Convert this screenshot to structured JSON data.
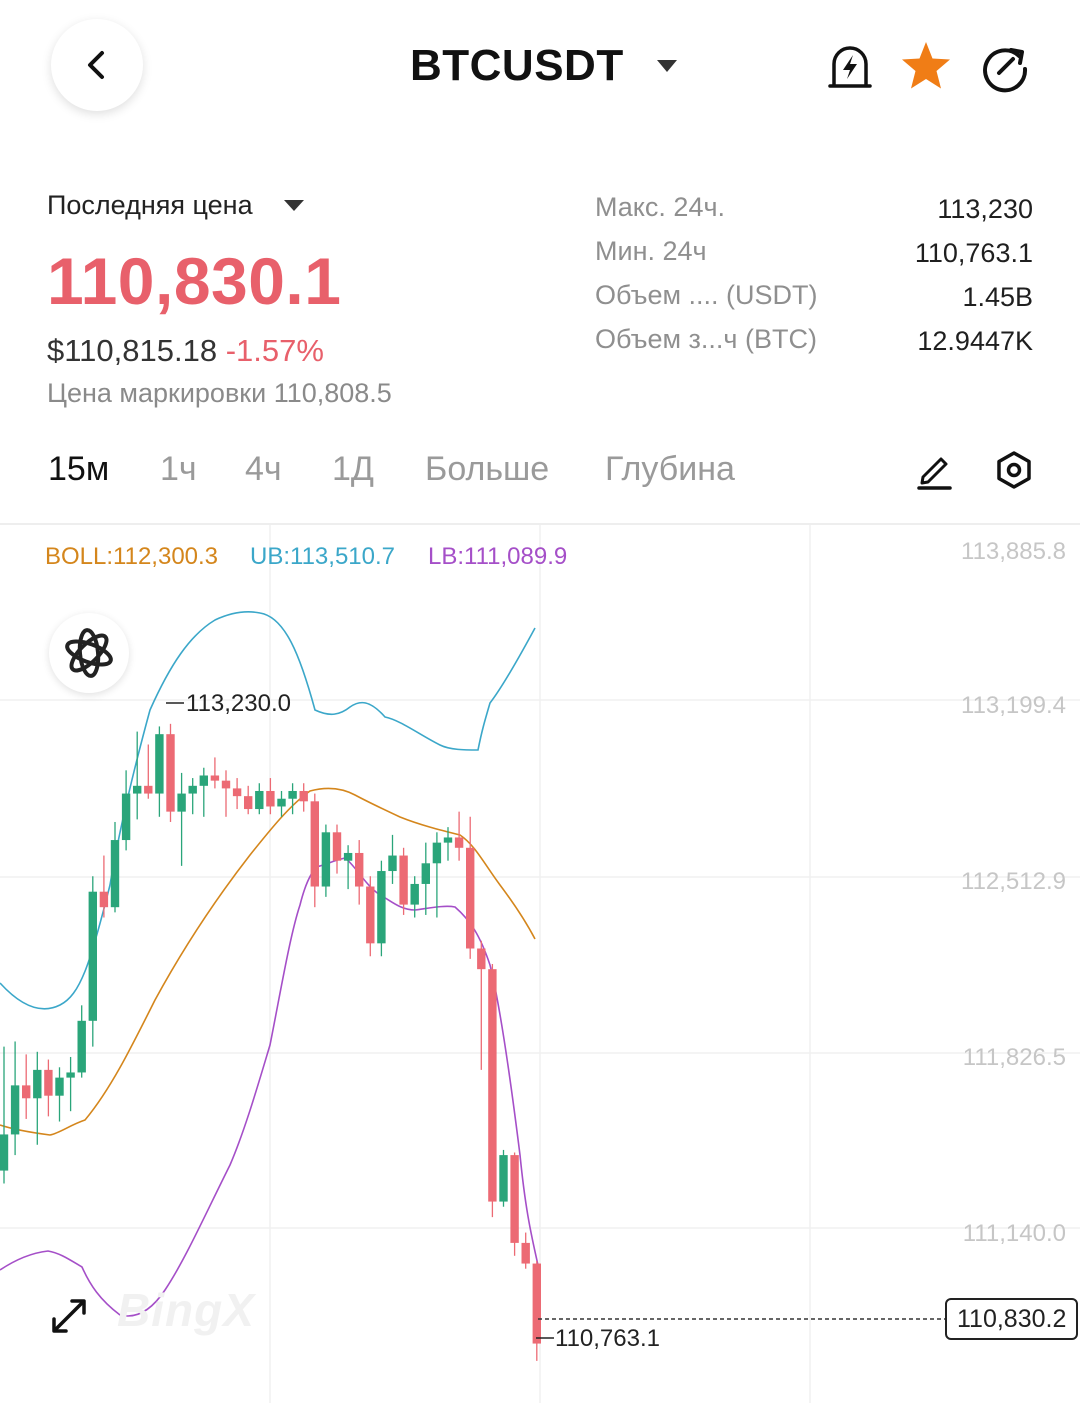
{
  "header": {
    "pair": "BTCUSDT",
    "icons": [
      "back-chevron-icon",
      "caret-down-icon",
      "alert-bell-icon",
      "star-icon",
      "share-icon"
    ],
    "star_color": "#f07d16"
  },
  "price": {
    "last_label": "Последняя цена",
    "last_price": "110,830.1",
    "usd_price": "$110,815.18",
    "change": "-1.57%",
    "mark_label": "Цена маркировки",
    "mark_price": "110,808.5",
    "down_color": "#e8606b"
  },
  "stats": [
    {
      "label": "Макс. 24ч.",
      "value": "113,230"
    },
    {
      "label": "Мин. 24ч",
      "value": "110,763.1"
    },
    {
      "label": "Объем .... (USDT)",
      "value": "1.45B"
    },
    {
      "label": "Объем з...ч (BTC)",
      "value": "12.9447K"
    }
  ],
  "tabs": [
    {
      "label": "15м",
      "active": true
    },
    {
      "label": "1ч",
      "active": false
    },
    {
      "label": "4ч",
      "active": false
    },
    {
      "label": "1Д",
      "active": false
    },
    {
      "label": "Больше",
      "active": false
    },
    {
      "label": "Глубина",
      "active": false
    }
  ],
  "indicator": {
    "boll": "BOLL:112,300.3",
    "ub": "UB:113,510.7",
    "lb": "LB:111,089.9"
  },
  "watermark": "BingX",
  "chart_data": {
    "type": "candlestick",
    "y_axis_labels": [
      "113,885.8",
      "113,199.4",
      "112,512.9",
      "111,826.5",
      "111,140.0"
    ],
    "ylim": [
      110600,
      114000
    ],
    "high_marker": "113,230.0",
    "low_marker": "110,763.1",
    "current_price_tag": "110,830.2",
    "current_price": 110830.2,
    "up_color": "#2aa57a",
    "down_color": "#ec6a74",
    "candles": [
      {
        "o": 111500,
        "h": 111980,
        "l": 111450,
        "c": 111640
      },
      {
        "o": 111640,
        "h": 112000,
        "l": 111560,
        "c": 111830
      },
      {
        "o": 111830,
        "h": 111950,
        "l": 111700,
        "c": 111780
      },
      {
        "o": 111780,
        "h": 111960,
        "l": 111600,
        "c": 111890
      },
      {
        "o": 111890,
        "h": 111930,
        "l": 111710,
        "c": 111790
      },
      {
        "o": 111790,
        "h": 111900,
        "l": 111690,
        "c": 111860
      },
      {
        "o": 111860,
        "h": 111940,
        "l": 111730,
        "c": 111880
      },
      {
        "o": 111880,
        "h": 112140,
        "l": 111860,
        "c": 112080
      },
      {
        "o": 112080,
        "h": 112640,
        "l": 111980,
        "c": 112580
      },
      {
        "o": 112580,
        "h": 112720,
        "l": 112480,
        "c": 112520
      },
      {
        "o": 112520,
        "h": 112850,
        "l": 112500,
        "c": 112780
      },
      {
        "o": 112780,
        "h": 113050,
        "l": 112740,
        "c": 112960
      },
      {
        "o": 112960,
        "h": 113200,
        "l": 112860,
        "c": 112990
      },
      {
        "o": 112990,
        "h": 113150,
        "l": 112940,
        "c": 112960
      },
      {
        "o": 112960,
        "h": 113220,
        "l": 112870,
        "c": 113190
      },
      {
        "o": 113190,
        "h": 113230,
        "l": 112850,
        "c": 112890
      },
      {
        "o": 112890,
        "h": 113040,
        "l": 112680,
        "c": 112960
      },
      {
        "o": 112960,
        "h": 113020,
        "l": 112880,
        "c": 112990
      },
      {
        "o": 112990,
        "h": 113060,
        "l": 112870,
        "c": 113030
      },
      {
        "o": 113030,
        "h": 113100,
        "l": 112980,
        "c": 113010
      },
      {
        "o": 113010,
        "h": 113050,
        "l": 112870,
        "c": 112980
      },
      {
        "o": 112980,
        "h": 113020,
        "l": 112900,
        "c": 112950
      },
      {
        "o": 112950,
        "h": 112990,
        "l": 112880,
        "c": 112900
      },
      {
        "o": 112900,
        "h": 113000,
        "l": 112880,
        "c": 112970
      },
      {
        "o": 112970,
        "h": 113020,
        "l": 112880,
        "c": 112910
      },
      {
        "o": 112910,
        "h": 112970,
        "l": 112870,
        "c": 112940
      },
      {
        "o": 112940,
        "h": 113000,
        "l": 112880,
        "c": 112970
      },
      {
        "o": 112970,
        "h": 113000,
        "l": 112890,
        "c": 112930
      },
      {
        "o": 112930,
        "h": 112960,
        "l": 112520,
        "c": 112600
      },
      {
        "o": 112600,
        "h": 112840,
        "l": 112560,
        "c": 112810
      },
      {
        "o": 112810,
        "h": 112840,
        "l": 112650,
        "c": 112700
      },
      {
        "o": 112700,
        "h": 112760,
        "l": 112590,
        "c": 112730
      },
      {
        "o": 112730,
        "h": 112780,
        "l": 112530,
        "c": 112600
      },
      {
        "o": 112600,
        "h": 112640,
        "l": 112330,
        "c": 112380
      },
      {
        "o": 112380,
        "h": 112700,
        "l": 112330,
        "c": 112660
      },
      {
        "o": 112660,
        "h": 112800,
        "l": 112610,
        "c": 112720
      },
      {
        "o": 112720,
        "h": 112750,
        "l": 112490,
        "c": 112530
      },
      {
        "o": 112530,
        "h": 112640,
        "l": 112480,
        "c": 112610
      },
      {
        "o": 112610,
        "h": 112770,
        "l": 112490,
        "c": 112690
      },
      {
        "o": 112690,
        "h": 112810,
        "l": 112480,
        "c": 112770
      },
      {
        "o": 112770,
        "h": 112830,
        "l": 112700,
        "c": 112790
      },
      {
        "o": 112790,
        "h": 112890,
        "l": 112700,
        "c": 112750
      },
      {
        "o": 112750,
        "h": 112870,
        "l": 112320,
        "c": 112360
      },
      {
        "o": 112360,
        "h": 112390,
        "l": 111890,
        "c": 112280
      },
      {
        "o": 112280,
        "h": 112300,
        "l": 111320,
        "c": 111380
      },
      {
        "o": 111380,
        "h": 111580,
        "l": 111360,
        "c": 111560
      },
      {
        "o": 111560,
        "h": 111570,
        "l": 111170,
        "c": 111220
      },
      {
        "o": 111220,
        "h": 111260,
        "l": 111120,
        "c": 111140
      },
      {
        "o": 111140,
        "h": 111150,
        "l": 110763.1,
        "c": 110830.2
      }
    ]
  }
}
